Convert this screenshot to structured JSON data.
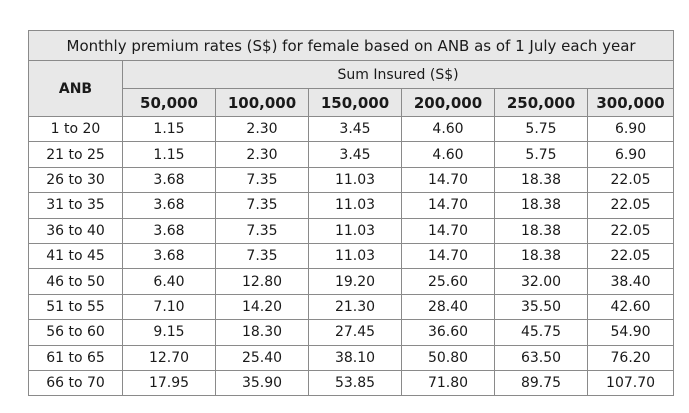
{
  "table": {
    "title": "Monthly premium rates (S$) for female based on ANB as of 1 July each year",
    "row_header": "ANB",
    "group_header": "Sum Insured (S$)",
    "columns": [
      "50,000",
      "100,000",
      "150,000",
      "200,000",
      "250,000",
      "300,000"
    ],
    "rows": [
      [
        "1 to 20",
        "1.15",
        "2.30",
        "3.45",
        "4.60",
        "5.75",
        "6.90"
      ],
      [
        "21 to 25",
        "1.15",
        "2.30",
        "3.45",
        "4.60",
        "5.75",
        "6.90"
      ],
      [
        "26 to 30",
        "3.68",
        "7.35",
        "11.03",
        "14.70",
        "18.38",
        "22.05"
      ],
      [
        "31 to 35",
        "3.68",
        "7.35",
        "11.03",
        "14.70",
        "18.38",
        "22.05"
      ],
      [
        "36 to 40",
        "3.68",
        "7.35",
        "11.03",
        "14.70",
        "18.38",
        "22.05"
      ],
      [
        "41 to 45",
        "3.68",
        "7.35",
        "11.03",
        "14.70",
        "18.38",
        "22.05"
      ],
      [
        "46 to 50",
        "6.40",
        "12.80",
        "19.20",
        "25.60",
        "32.00",
        "38.40"
      ],
      [
        "51 to 55",
        "7.10",
        "14.20",
        "21.30",
        "28.40",
        "35.50",
        "42.60"
      ],
      [
        "56 to 60",
        "9.15",
        "18.30",
        "27.45",
        "36.60",
        "45.75",
        "54.90"
      ],
      [
        "61 to 65",
        "12.70",
        "25.40",
        "38.10",
        "50.80",
        "63.50",
        "76.20"
      ],
      [
        "66 to 70",
        "17.95",
        "35.90",
        "53.85",
        "71.80",
        "89.75",
        "107.70"
      ]
    ]
  }
}
